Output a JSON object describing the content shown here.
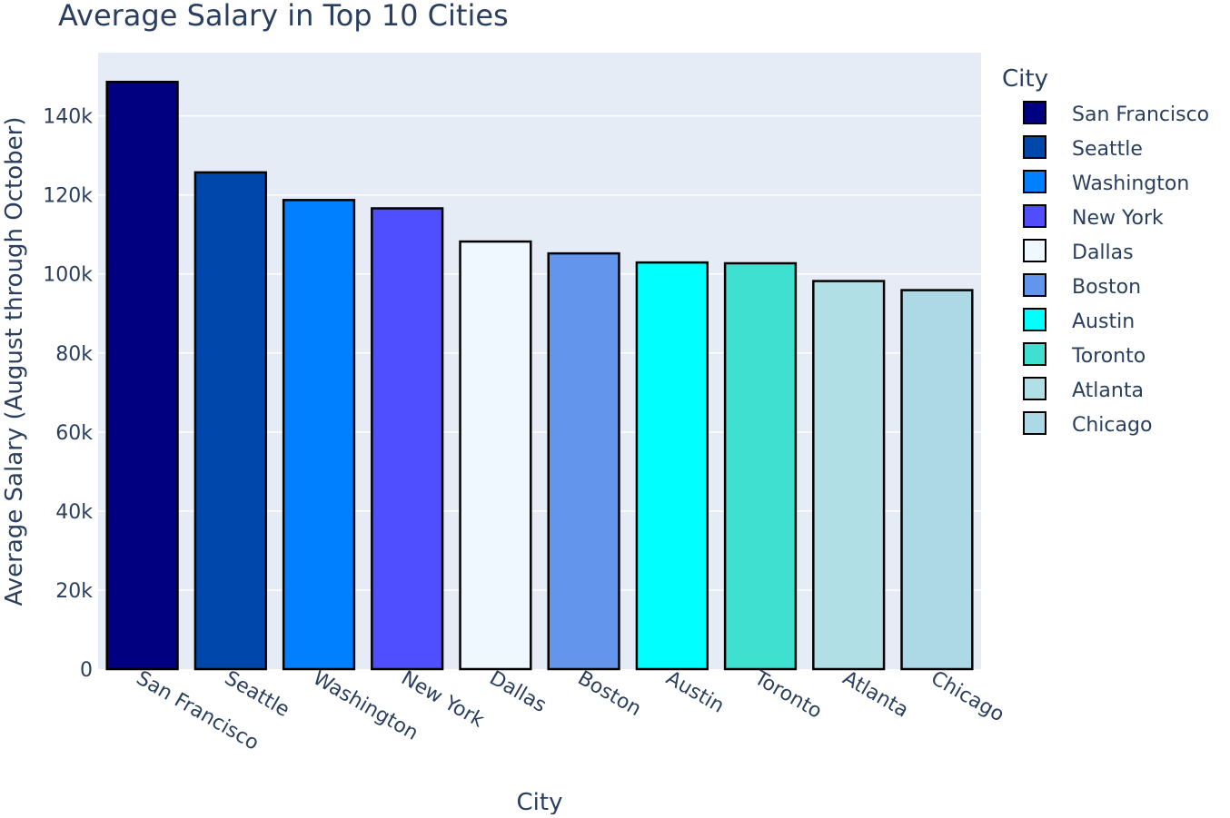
{
  "chart_data": {
    "type": "bar",
    "title": "Average Salary in Top 10 Cities",
    "xlabel": "City",
    "ylabel": "Average Salary (August through October)",
    "ylim": [
      0,
      156000
    ],
    "yticks": [
      0,
      20000,
      40000,
      60000,
      80000,
      100000,
      120000,
      140000
    ],
    "ytick_labels": [
      "0",
      "20k",
      "40k",
      "60k",
      "80k",
      "100k",
      "120k",
      "140k"
    ],
    "categories": [
      "San Francisco",
      "Seattle",
      "Washington",
      "New York",
      "Dallas",
      "Boston",
      "Austin",
      "Toronto",
      "Atlanta",
      "Chicago"
    ],
    "values": [
      148600,
      125700,
      118700,
      116600,
      108200,
      105200,
      102900,
      102700,
      98200,
      95900
    ],
    "colors": [
      "#000080",
      "#0047ab",
      "#007fff",
      "#4f4fff",
      "#f0f8ff",
      "#6495ed",
      "#00ffff",
      "#40e0d0",
      "#b0e0e6",
      "#add8e6"
    ],
    "legend_title": "City",
    "legend_position": "right",
    "grid": true,
    "plot_background": "#e5ecf6",
    "bar_outline_color": "#000000"
  }
}
